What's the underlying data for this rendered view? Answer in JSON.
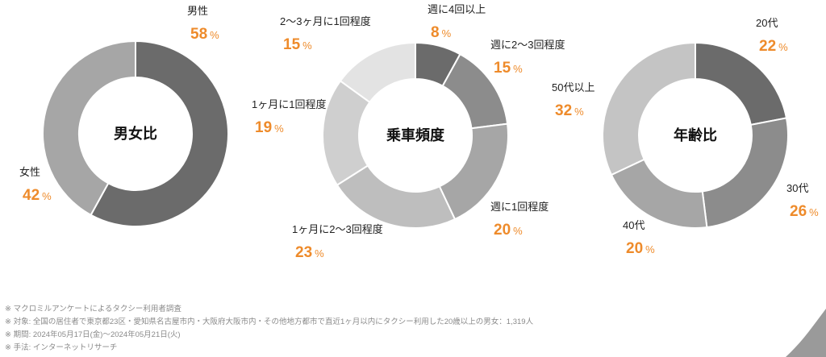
{
  "chart_data": [
    {
      "type": "pie",
      "title": "男女比",
      "unit": "%",
      "slices": [
        {
          "label": "男性",
          "value": 58,
          "color": "#6b6b6b"
        },
        {
          "label": "女性",
          "value": 42,
          "color": "#a6a6a6"
        }
      ]
    },
    {
      "type": "pie",
      "title": "乗車頻度",
      "unit": "%",
      "slices": [
        {
          "label": "週に4回以上",
          "value": 8,
          "color": "#6b6b6b"
        },
        {
          "label": "週に2〜3回程度",
          "value": 15,
          "color": "#8c8c8c"
        },
        {
          "label": "週に1回程度",
          "value": 20,
          "color": "#a6a6a6"
        },
        {
          "label": "1ヶ月に2〜3回程度",
          "value": 23,
          "color": "#bebebe"
        },
        {
          "label": "1ヶ月に1回程度",
          "value": 19,
          "color": "#cfcfcf"
        },
        {
          "label": "2〜3ヶ月に1回程度",
          "value": 15,
          "color": "#e3e3e3"
        }
      ]
    },
    {
      "type": "pie",
      "title": "年齢比",
      "unit": "%",
      "slices": [
        {
          "label": "20代",
          "value": 22,
          "color": "#6b6b6b"
        },
        {
          "label": "30代",
          "value": 26,
          "color": "#8c8c8c"
        },
        {
          "label": "40代",
          "value": 20,
          "color": "#a6a6a6"
        },
        {
          "label": "50代以上",
          "value": 32,
          "color": "#c4c4c4"
        }
      ]
    }
  ],
  "notes": [
    "※ マクロミルアンケートによるタクシー利用者調査",
    "※ 対象: 全国の居住者で東京都23区・愛知県名古屋市内・大阪府大阪市内・その他地方都市で直近1ヶ月以内にタクシー利用した20歳以上の男女：1,319人",
    "※ 期間: 2024年05月17日(金)〜2024年05月21日(火)",
    "※ 手法: インターネットリサーチ"
  ]
}
